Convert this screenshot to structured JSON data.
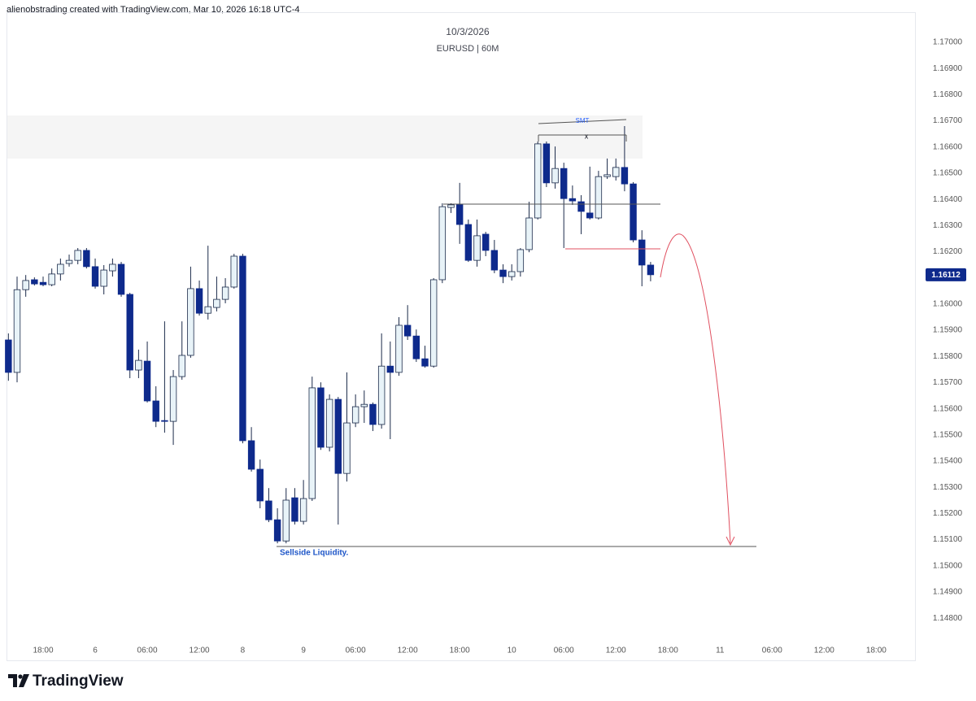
{
  "header": "alienobstrading created with TradingView.com, Mar 10, 2026 16:18 UTC-4",
  "footer": {
    "logo_text": "TradingView"
  },
  "chart_data": {
    "type": "candlestick",
    "title": "10/3/2026",
    "subtitle": "EURUSD | 60M",
    "annotations": {
      "smt": "SMT",
      "x": "x",
      "sellside": "Sellside Liquidity."
    },
    "up_color": "#e8f3f8",
    "down_color": "#0e2a8c",
    "outline_color": "#1b2a4a",
    "last_price": 1.16112,
    "last_price_color": "#0e2a8c",
    "grid": false,
    "ylim": [
      1.14639,
      1.17115
    ],
    "yticks": [
      {
        "value": 1.148,
        "label": "1.14800"
      },
      {
        "value": 1.149,
        "label": "1.14900"
      },
      {
        "value": 1.15,
        "label": "1.15000"
      },
      {
        "value": 1.151,
        "label": "1.15100"
      },
      {
        "value": 1.152,
        "label": "1.15200"
      },
      {
        "value": 1.153,
        "label": "1.15300"
      },
      {
        "value": 1.154,
        "label": "1.15400"
      },
      {
        "value": 1.155,
        "label": "1.15500"
      },
      {
        "value": 1.156,
        "label": "1.15600"
      },
      {
        "value": 1.157,
        "label": "1.15700"
      },
      {
        "value": 1.158,
        "label": "1.15800"
      },
      {
        "value": 1.159,
        "label": "1.15900"
      },
      {
        "value": 1.16,
        "label": "1.16000"
      },
      {
        "value": 1.161,
        "label": "1.16100"
      },
      {
        "value": 1.162,
        "label": "1.16200"
      },
      {
        "value": 1.163,
        "label": "1.16300"
      },
      {
        "value": 1.164,
        "label": "1.16400"
      },
      {
        "value": 1.165,
        "label": "1.16500"
      },
      {
        "value": 1.166,
        "label": "1.16600"
      },
      {
        "value": 1.167,
        "label": "1.16700"
      },
      {
        "value": 1.168,
        "label": "1.16800"
      },
      {
        "value": 1.169,
        "label": "1.16900"
      },
      {
        "value": 1.17,
        "label": "1.17000"
      }
    ],
    "categories": [
      null,
      null,
      null,
      null,
      "18:00",
      null,
      null,
      null,
      null,
      null,
      "6",
      null,
      null,
      null,
      null,
      null,
      "06:00",
      null,
      null,
      null,
      null,
      null,
      "12:00",
      null,
      null,
      null,
      null,
      "8",
      null,
      null,
      null,
      null,
      null,
      null,
      "9",
      null,
      null,
      null,
      null,
      null,
      "06:00",
      null,
      null,
      null,
      null,
      null,
      "12:00",
      null,
      null,
      null,
      null,
      null,
      "18:00",
      null,
      null,
      null,
      null,
      null,
      "10",
      null,
      null,
      null,
      null,
      null,
      "06:00",
      null,
      null,
      null,
      null,
      null,
      "12:00",
      null,
      null,
      null,
      null,
      null,
      "18:00",
      null,
      null,
      null,
      null,
      null,
      "11",
      null,
      null,
      null,
      null,
      null,
      "06:00",
      null,
      null,
      null,
      null,
      null,
      "12:00",
      null,
      null,
      null,
      null,
      null,
      "18:00",
      null,
      null,
      null,
      null
    ],
    "open": [
      1.15863,
      1.15739,
      1.16055,
      1.16093,
      1.16083,
      1.16074,
      1.16115,
      1.16155,
      1.16167,
      1.16205,
      1.16143,
      1.16068,
      1.16127,
      1.16152,
      1.16037,
      1.15748,
      1.15782,
      1.1563,
      1.15555,
      1.15552,
      1.15723,
      1.15804,
      1.16059,
      1.15965,
      1.15987,
      1.16018,
      1.16065,
      1.16183,
      1.15478,
      1.15369,
      1.15248,
      1.15176,
      1.15095,
      1.1526,
      1.1517,
      1.15257,
      1.1568,
      1.15453,
      1.15636,
      1.15353,
      1.15546,
      1.15608,
      1.15617,
      1.1554,
      1.15763,
      1.15739,
      1.15919,
      1.15878,
      1.15791,
      1.15763,
      1.16093,
      1.16369,
      1.16379,
      1.16304,
      1.16167,
      1.16267,
      1.16205,
      1.1613,
      1.16105,
      1.16124,
      1.16208,
      1.16329,
      1.16612,
      1.16463,
      1.16518,
      1.16403,
      1.16391,
      1.16348,
      1.16329,
      1.16487,
      1.16487,
      1.16522,
      1.16459,
      1.16245,
      1.16149,
      null,
      null,
      null,
      null,
      null,
      null,
      null,
      null,
      null,
      null,
      null,
      null,
      null,
      null,
      null,
      null,
      null,
      null,
      null,
      null,
      null,
      null,
      null,
      null,
      null,
      null,
      null,
      null,
      null,
      null
    ],
    "high": [
      1.15888,
      1.16105,
      1.16111,
      1.16102,
      1.16105,
      1.16136,
      1.16174,
      1.16189,
      1.16214,
      1.16214,
      1.16174,
      1.16149,
      1.16174,
      1.16161,
      1.16043,
      1.15826,
      1.15857,
      1.15686,
      1.15934,
      1.15748,
      1.15934,
      1.16143,
      1.1609,
      1.16223,
      1.16105,
      1.16099,
      1.16192,
      1.16192,
      1.1553,
      1.15406,
      1.15297,
      1.1522,
      1.15297,
      1.15297,
      1.15328,
      1.15723,
      1.15701,
      1.15655,
      1.15645,
      1.15739,
      1.15655,
      1.1567,
      1.15624,
      1.15888,
      1.15857,
      1.1595,
      1.15996,
      1.15903,
      1.15841,
      1.16099,
      1.16385,
      1.16385,
      1.16463,
      1.16323,
      1.16323,
      1.16276,
      1.16245,
      1.16152,
      1.16152,
      1.16214,
      1.16391,
      1.16621,
      1.16621,
      1.16602,
      1.1654,
      1.16453,
      1.16416,
      1.16525,
      1.16509,
      1.16556,
      1.16556,
      1.1668,
      1.16466,
      1.16282,
      1.16161,
      null,
      null,
      null,
      null,
      null,
      null,
      null,
      null,
      null,
      null,
      null,
      null,
      null,
      null,
      null,
      null,
      null,
      null,
      null,
      null,
      null,
      null,
      null,
      null,
      null,
      null,
      null,
      null,
      null,
      null
    ],
    "low": [
      1.15707,
      1.15701,
      1.16028,
      1.16071,
      1.16068,
      1.16068,
      1.1609,
      1.16143,
      1.16152,
      1.16136,
      1.16059,
      1.16037,
      1.16105,
      1.16028,
      1.15717,
      1.15717,
      1.15624,
      1.1553,
      1.15509,
      1.15462,
      1.15711,
      1.15795,
      1.15956,
      1.15941,
      1.15972,
      1.16003,
      1.16059,
      1.15468,
      1.1536,
      1.1522,
      1.15167,
      1.15086,
      1.15086,
      1.15158,
      1.15158,
      1.15248,
      1.15443,
      1.15437,
      1.15158,
      1.15322,
      1.1553,
      1.15546,
      1.15515,
      1.15524,
      1.15484,
      1.15726,
      1.15863,
      1.15779,
      1.15757,
      1.15757,
      1.1608,
      1.16348,
      1.1623,
      1.16161,
      1.16143,
      1.16183,
      1.16118,
      1.1608,
      1.1609,
      1.16105,
      1.16198,
      1.16323,
      1.16447,
      1.16441,
      1.16214,
      1.16379,
      1.16267,
      1.16323,
      1.16323,
      1.16478,
      1.16472,
      1.16431,
      1.16236,
      1.16068,
      1.16087,
      null,
      null,
      null,
      null,
      null,
      null,
      null,
      null,
      null,
      null,
      null,
      null,
      null,
      null,
      null,
      null,
      null,
      null,
      null,
      null,
      null,
      null,
      null,
      null,
      null,
      null,
      null,
      null,
      null,
      null
    ],
    "close": [
      1.15739,
      1.16055,
      1.1609,
      1.16077,
      1.16074,
      1.16115,
      1.16152,
      1.16167,
      1.16205,
      1.16143,
      1.16068,
      1.1613,
      1.16152,
      1.16037,
      1.15748,
      1.15785,
      1.1563,
      1.15552,
      1.15552,
      1.15723,
      1.15804,
      1.16059,
      1.15965,
      1.1599,
      1.16018,
      1.16065,
      1.16183,
      1.15478,
      1.15369,
      1.15248,
      1.15176,
      1.15095,
      1.15251,
      1.1517,
      1.15257,
      1.1568,
      1.15453,
      1.15636,
      1.15353,
      1.15546,
      1.15608,
      1.15617,
      1.1554,
      1.15763,
      1.15739,
      1.15919,
      1.15878,
      1.15791,
      1.15763,
      1.16093,
      1.16372,
      1.16379,
      1.16304,
      1.16167,
      1.16261,
      1.16205,
      1.1613,
      1.16105,
      1.16124,
      1.16208,
      1.16329,
      1.16612,
      1.16463,
      1.16518,
      1.16403,
      1.16394,
      1.16354,
      1.16329,
      1.16487,
      1.16494,
      1.16522,
      1.16459,
      1.16245,
      1.16149,
      1.16112,
      null,
      null,
      null,
      null,
      null,
      null,
      null,
      null,
      null,
      null,
      null,
      null,
      null,
      null,
      null,
      null,
      null,
      null,
      null,
      null,
      null,
      null,
      null,
      null,
      null,
      null,
      null,
      null,
      null,
      null
    ]
  }
}
